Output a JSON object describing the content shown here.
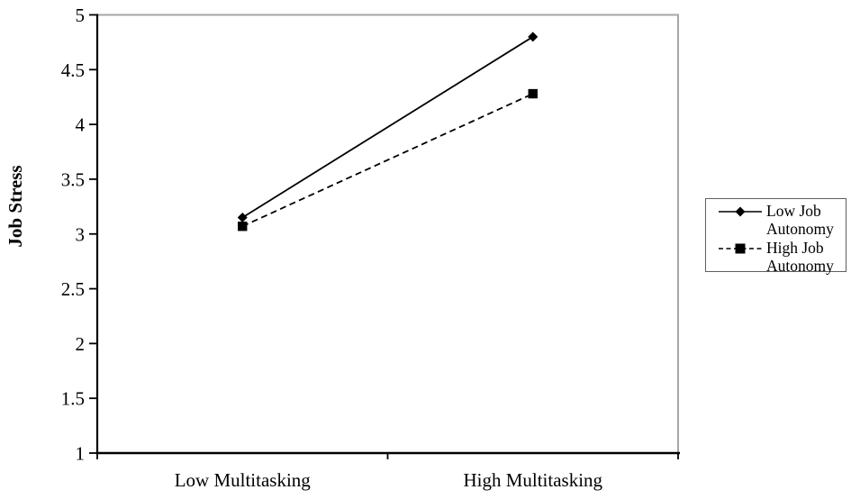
{
  "chart_data": {
    "type": "line",
    "title": "",
    "categories": [
      "Low Multitasking",
      "High Multitasking"
    ],
    "series": [
      {
        "name": "Low Job Autonomy",
        "values": [
          3.15,
          4.8
        ],
        "marker": "diamond",
        "line_style": "solid",
        "color": "#000000"
      },
      {
        "name": "High Job Autonomy",
        "values": [
          3.07,
          4.28
        ],
        "marker": "square",
        "line_style": "dashed",
        "color": "#000000"
      }
    ],
    "xlabel": "",
    "ylabel": "Job Stress",
    "ylim": [
      1,
      5
    ],
    "yticks": [
      "5",
      "4.5",
      "4",
      "3.5",
      "3",
      "2.5",
      "2",
      "1.5",
      "1"
    ],
    "grid": false,
    "legend_position": "right"
  },
  "colors": {
    "axis": "#000000",
    "plot_frame": "#a6a6a6",
    "text": "#000000",
    "legend_border": "#5f5f5f",
    "background": "#ffffff"
  }
}
